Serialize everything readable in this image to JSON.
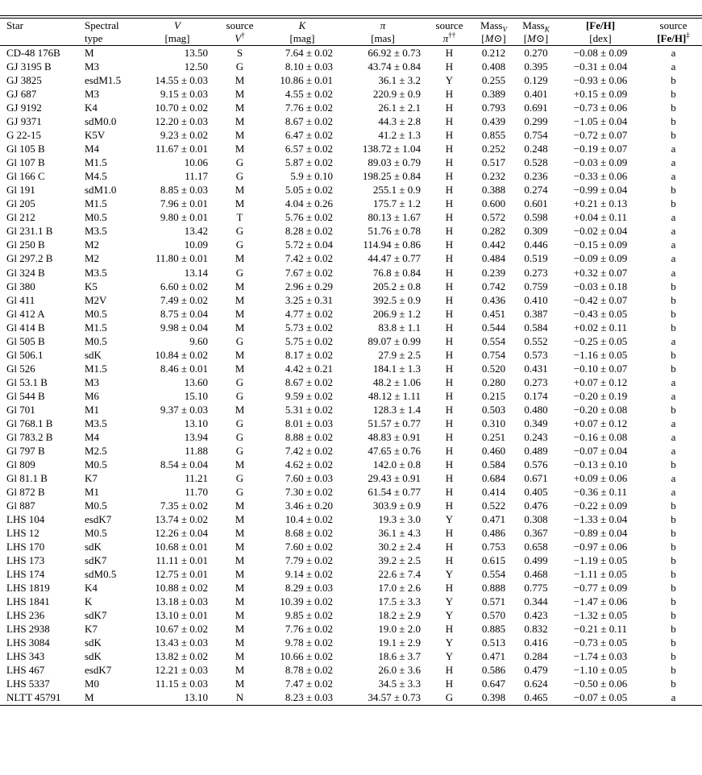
{
  "header": {
    "star": "Star",
    "spectral": [
      "Spectral",
      "type"
    ],
    "v": [
      "V",
      "[mag]"
    ],
    "source_v": [
      "source",
      "V",
      "†"
    ],
    "k": [
      "K",
      "[mag]"
    ],
    "plx": [
      "π",
      "[mas]"
    ],
    "source_plx": [
      "source",
      "π",
      "††"
    ],
    "mass_v": [
      "Mass",
      "V",
      "[M",
      "⊙",
      "]"
    ],
    "mass_k": [
      "Mass",
      "K",
      "[M",
      "⊙",
      "]"
    ],
    "feh": [
      "[Fe/H]",
      "[dex]"
    ],
    "source_feh": [
      "source",
      "[Fe/H]",
      "‡"
    ]
  },
  "rows": [
    [
      "CD-48 176B",
      "M",
      "13.50",
      "S",
      "7.64 ± 0.02",
      "66.92 ± 0.73",
      "H",
      "0.212",
      "0.270",
      "−0.08 ± 0.09",
      "a"
    ],
    [
      "GJ 3195 B",
      "M3",
      "12.50",
      "G",
      "8.10 ± 0.03",
      "43.74 ± 0.84",
      "H",
      "0.408",
      "0.395",
      "−0.31 ± 0.04",
      "a"
    ],
    [
      "GJ 3825",
      "esdM1.5",
      "14.55 ± 0.03",
      "M",
      "10.86 ± 0.01",
      "36.1 ± 3.2",
      "Y",
      "0.255",
      "0.129",
      "−0.93 ± 0.06",
      "b"
    ],
    [
      "GJ 687",
      "M3",
      "9.15 ± 0.03",
      "M",
      "4.55 ± 0.02",
      "220.9 ± 0.9",
      "H",
      "0.389",
      "0.401",
      "+0.15 ± 0.09",
      "b"
    ],
    [
      "GJ 9192",
      "K4",
      "10.70 ± 0.02",
      "M",
      "7.76 ± 0.02",
      "26.1 ± 2.1",
      "H",
      "0.793",
      "0.691",
      "−0.73 ± 0.06",
      "b"
    ],
    [
      "GJ 9371",
      "sdM0.0",
      "12.20 ± 0.03",
      "M",
      "8.67 ± 0.02",
      "44.3 ± 2.8",
      "H",
      "0.439",
      "0.299",
      "−1.05 ± 0.04",
      "b"
    ],
    [
      "G 22-15",
      "K5V",
      "9.23 ± 0.02",
      "M",
      "6.47 ± 0.02",
      "41.2 ± 1.3",
      "H",
      "0.855",
      "0.754",
      "−0.72 ± 0.07",
      "b"
    ],
    [
      "Gl 105 B",
      "M4",
      "11.67 ± 0.01",
      "M",
      "6.57 ± 0.02",
      "138.72 ± 1.04",
      "H",
      "0.252",
      "0.248",
      "−0.19 ± 0.07",
      "a"
    ],
    [
      "Gl 107 B",
      "M1.5",
      "10.06",
      "G",
      "5.87 ± 0.02",
      "89.03 ± 0.79",
      "H",
      "0.517",
      "0.528",
      "−0.03 ± 0.09",
      "a"
    ],
    [
      "Gl 166 C",
      "M4.5",
      "11.17",
      "G",
      "5.9 ± 0.10",
      "198.25 ± 0.84",
      "H",
      "0.232",
      "0.236",
      "−0.33 ± 0.06",
      "a"
    ],
    [
      "Gl 191",
      "sdM1.0",
      "8.85 ± 0.03",
      "M",
      "5.05 ± 0.02",
      "255.1 ± 0.9",
      "H",
      "0.388",
      "0.274",
      "−0.99 ± 0.04",
      "b"
    ],
    [
      "Gl 205",
      "M1.5",
      "7.96 ± 0.01",
      "M",
      "4.04 ± 0.26",
      "175.7 ± 1.2",
      "H",
      "0.600",
      "0.601",
      "+0.21 ± 0.13",
      "b"
    ],
    [
      "Gl 212",
      "M0.5",
      "9.80 ± 0.01",
      "T",
      "5.76 ± 0.02",
      "80.13 ± 1.67",
      "H",
      "0.572",
      "0.598",
      "+0.04 ± 0.11",
      "a"
    ],
    [
      "Gl 231.1 B",
      "M3.5",
      "13.42",
      "G",
      "8.28 ± 0.02",
      "51.76 ± 0.78",
      "H",
      "0.282",
      "0.309",
      "−0.02 ± 0.04",
      "a"
    ],
    [
      "Gl 250 B",
      "M2",
      "10.09",
      "G",
      "5.72 ± 0.04",
      "114.94 ± 0.86",
      "H",
      "0.442",
      "0.446",
      "−0.15 ± 0.09",
      "a"
    ],
    [
      "Gl 297.2 B",
      "M2",
      "11.80 ± 0.01",
      "M",
      "7.42 ± 0.02",
      "44.47 ± 0.77",
      "H",
      "0.484",
      "0.519",
      "−0.09 ± 0.09",
      "a"
    ],
    [
      "Gl 324 B",
      "M3.5",
      "13.14",
      "G",
      "7.67 ± 0.02",
      "76.8 ± 0.84",
      "H",
      "0.239",
      "0.273",
      "+0.32 ± 0.07",
      "a"
    ],
    [
      "Gl 380",
      "K5",
      "6.60 ± 0.02",
      "M",
      "2.96 ± 0.29",
      "205.2 ± 0.8",
      "H",
      "0.742",
      "0.759",
      "−0.03 ± 0.18",
      "b"
    ],
    [
      "Gl 411",
      "M2V",
      "7.49 ± 0.02",
      "M",
      "3.25 ± 0.31",
      "392.5 ± 0.9",
      "H",
      "0.436",
      "0.410",
      "−0.42 ± 0.07",
      "b"
    ],
    [
      "Gl 412 A",
      "M0.5",
      "8.75 ± 0.04",
      "M",
      "4.77 ± 0.02",
      "206.9 ± 1.2",
      "H",
      "0.451",
      "0.387",
      "−0.43 ± 0.05",
      "b"
    ],
    [
      "Gl 414 B",
      "M1.5",
      "9.98 ± 0.04",
      "M",
      "5.73 ± 0.02",
      "83.8 ± 1.1",
      "H",
      "0.544",
      "0.584",
      "+0.02 ± 0.11",
      "b"
    ],
    [
      "Gl 505 B",
      "M0.5",
      "9.60",
      "G",
      "5.75 ± 0.02",
      "89.07 ± 0.99",
      "H",
      "0.554",
      "0.552",
      "−0.25 ± 0.05",
      "a"
    ],
    [
      "Gl 506.1",
      "sdK",
      "10.84 ± 0.02",
      "M",
      "8.17 ± 0.02",
      "27.9 ± 2.5",
      "H",
      "0.754",
      "0.573",
      "−1.16 ± 0.05",
      "b"
    ],
    [
      "Gl 526",
      "M1.5",
      "8.46 ± 0.01",
      "M",
      "4.42 ± 0.21",
      "184.1 ± 1.3",
      "H",
      "0.520",
      "0.431",
      "−0.10 ± 0.07",
      "b"
    ],
    [
      "Gl 53.1 B",
      "M3",
      "13.60",
      "G",
      "8.67 ± 0.02",
      "48.2 ± 1.06",
      "H",
      "0.280",
      "0.273",
      "+0.07 ± 0.12",
      "a"
    ],
    [
      "Gl 544 B",
      "M6",
      "15.10",
      "G",
      "9.59 ± 0.02",
      "48.12 ± 1.11",
      "H",
      "0.215",
      "0.174",
      "−0.20 ± 0.19",
      "a"
    ],
    [
      "Gl 701",
      "M1",
      "9.37 ± 0.03",
      "M",
      "5.31 ± 0.02",
      "128.3 ± 1.4",
      "H",
      "0.503",
      "0.480",
      "−0.20 ± 0.08",
      "b"
    ],
    [
      "Gl 768.1 B",
      "M3.5",
      "13.10",
      "G",
      "8.01 ± 0.03",
      "51.57 ± 0.77",
      "H",
      "0.310",
      "0.349",
      "+0.07 ± 0.12",
      "a"
    ],
    [
      "Gl 783.2 B",
      "M4",
      "13.94",
      "G",
      "8.88 ± 0.02",
      "48.83 ± 0.91",
      "H",
      "0.251",
      "0.243",
      "−0.16 ± 0.08",
      "a"
    ],
    [
      "Gl 797 B",
      "M2.5",
      "11.88",
      "G",
      "7.42 ± 0.02",
      "47.65 ± 0.76",
      "H",
      "0.460",
      "0.489",
      "−0.07 ± 0.04",
      "a"
    ],
    [
      "Gl 809",
      "M0.5",
      "8.54 ± 0.04",
      "M",
      "4.62 ± 0.02",
      "142.0 ± 0.8",
      "H",
      "0.584",
      "0.576",
      "−0.13 ± 0.10",
      "b"
    ],
    [
      "Gl 81.1 B",
      "K7",
      "11.21",
      "G",
      "7.60 ± 0.03",
      "29.43 ± 0.91",
      "H",
      "0.684",
      "0.671",
      "+0.09 ± 0.06",
      "a"
    ],
    [
      "Gl 872 B",
      "M1",
      "11.70",
      "G",
      "7.30 ± 0.02",
      "61.54 ± 0.77",
      "H",
      "0.414",
      "0.405",
      "−0.36 ± 0.11",
      "a"
    ],
    [
      "Gl 887",
      "M0.5",
      "7.35 ± 0.02",
      "M",
      "3.46 ± 0.20",
      "303.9 ± 0.9",
      "H",
      "0.522",
      "0.476",
      "−0.22 ± 0.09",
      "b"
    ],
    [
      "LHS 104",
      "esdK7",
      "13.74 ± 0.02",
      "M",
      "10.4 ± 0.02",
      "19.3 ± 3.0",
      "Y",
      "0.471",
      "0.308",
      "−1.33 ± 0.04",
      "b"
    ],
    [
      "LHS 12",
      "M0.5",
      "12.26 ± 0.04",
      "M",
      "8.68 ± 0.02",
      "36.1 ± 4.3",
      "H",
      "0.486",
      "0.367",
      "−0.89 ± 0.04",
      "b"
    ],
    [
      "LHS 170",
      "sdK",
      "10.68 ± 0.01",
      "M",
      "7.60 ± 0.02",
      "30.2 ± 2.4",
      "H",
      "0.753",
      "0.658",
      "−0.97 ± 0.06",
      "b"
    ],
    [
      "LHS 173",
      "sdK7",
      "11.11 ± 0.01",
      "M",
      "7.79 ± 0.02",
      "39.2 ± 2.5",
      "H",
      "0.615",
      "0.499",
      "−1.19 ± 0.05",
      "b"
    ],
    [
      "LHS 174",
      "sdM0.5",
      "12.75 ± 0.01",
      "M",
      "9.14 ± 0.02",
      "22.6 ± 7.4",
      "Y",
      "0.554",
      "0.468",
      "−1.11 ± 0.05",
      "b"
    ],
    [
      "LHS 1819",
      "K4",
      "10.88 ± 0.02",
      "M",
      "8.29 ± 0.03",
      "17.0 ± 2.6",
      "H",
      "0.888",
      "0.775",
      "−0.77 ± 0.09",
      "b"
    ],
    [
      "LHS 1841",
      "K",
      "13.18 ± 0.03",
      "M",
      "10.39 ± 0.02",
      "17.5 ± 3.3",
      "Y",
      "0.571",
      "0.344",
      "−1.47 ± 0.06",
      "b"
    ],
    [
      "LHS 236",
      "sdK7",
      "13.10 ± 0.01",
      "M",
      "9.85 ± 0.02",
      "18.2 ± 2.9",
      "Y",
      "0.570",
      "0.423",
      "−1.32 ± 0.05",
      "b"
    ],
    [
      "LHS 2938",
      "K7",
      "10.67 ± 0.02",
      "M",
      "7.76 ± 0.02",
      "19.0 ± 2.0",
      "H",
      "0.885",
      "0.832",
      "−0.21 ± 0.11",
      "b"
    ],
    [
      "LHS 3084",
      "sdK",
      "13.43 ± 0.03",
      "M",
      "9.78 ± 0.02",
      "19.1 ± 2.9",
      "Y",
      "0.513",
      "0.416",
      "−0.73 ± 0.05",
      "b"
    ],
    [
      "LHS 343",
      "sdK",
      "13.82 ± 0.02",
      "M",
      "10.66 ± 0.02",
      "18.6 ± 3.7",
      "Y",
      "0.471",
      "0.284",
      "−1.74 ± 0.03",
      "b"
    ],
    [
      "LHS 467",
      "esdK7",
      "12.21 ± 0.03",
      "M",
      "8.78 ± 0.02",
      "26.0 ± 3.6",
      "H",
      "0.586",
      "0.479",
      "−1.10 ± 0.05",
      "b"
    ],
    [
      "LHS 5337",
      "M0",
      "11.15 ± 0.03",
      "M",
      "7.47 ± 0.02",
      "34.5 ± 3.3",
      "H",
      "0.647",
      "0.624",
      "−0.50 ± 0.06",
      "b"
    ],
    [
      "NLTT 45791",
      "M",
      "13.10",
      "N",
      "8.23 ± 0.03",
      "34.57 ± 0.73",
      "G",
      "0.398",
      "0.465",
      "−0.07 ± 0.05",
      "a"
    ]
  ]
}
